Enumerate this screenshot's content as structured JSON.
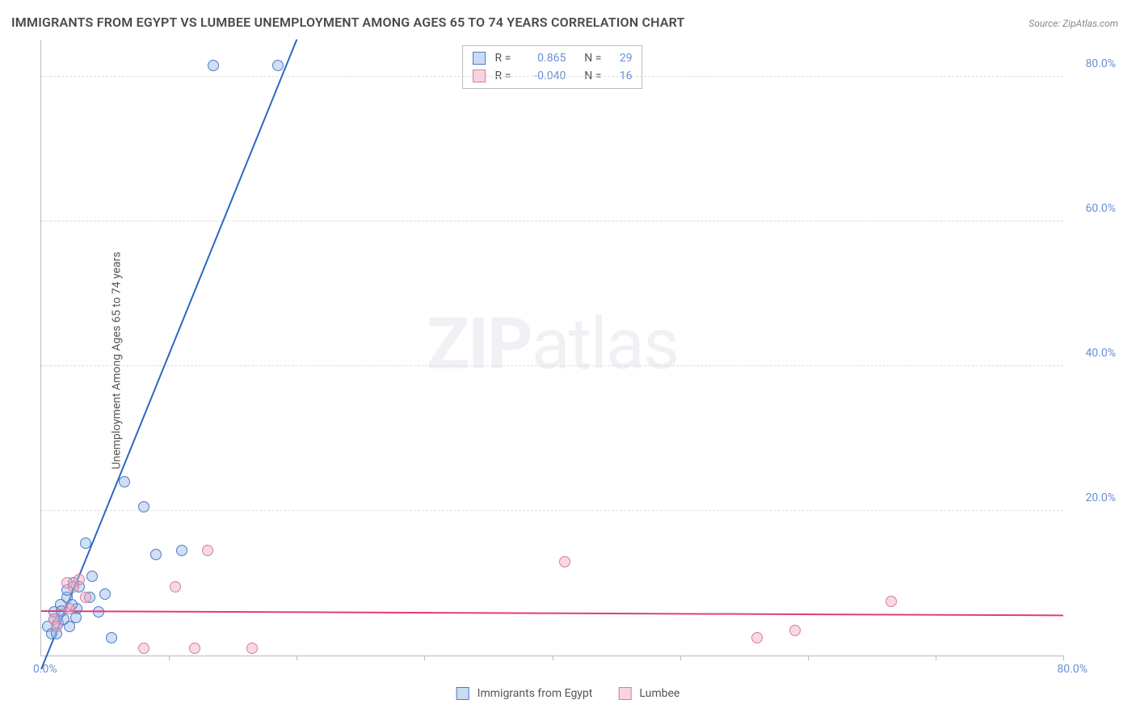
{
  "title": "IMMIGRANTS FROM EGYPT VS LUMBEE UNEMPLOYMENT AMONG AGES 65 TO 74 YEARS CORRELATION CHART",
  "source": "Source: ZipAtlas.com",
  "ylabel": "Unemployment Among Ages 65 to 74 years",
  "watermark_bold": "ZIP",
  "watermark_light": "atlas",
  "chart": {
    "type": "scatter-with-regression",
    "background_color": "#ffffff",
    "grid_color": "#dcdcdc",
    "axis_color": "#bbbbbb",
    "tick_label_color": "#6a8fd8",
    "xlim": [
      0,
      80
    ],
    "ylim": [
      0,
      85
    ],
    "x_origin_label": "0.0%",
    "x_end_label": "80.0%",
    "yticks": [
      {
        "value": 20,
        "label": "20.0%"
      },
      {
        "value": 40,
        "label": "40.0%"
      },
      {
        "value": 60,
        "label": "60.0%"
      },
      {
        "value": 80,
        "label": "80.0%"
      }
    ],
    "xticks_minor": [
      10,
      20,
      30,
      40,
      50,
      60,
      70,
      80
    ],
    "series": [
      {
        "key": "a",
        "name": "Immigrants from Egypt",
        "color_fill": "rgba(150,185,230,0.45)",
        "color_stroke": "#4a7bc8",
        "r_label": "R =",
        "r_value": "0.865",
        "n_label": "N =",
        "n_value": "29",
        "trend": {
          "x1": 0,
          "y1": -2,
          "x2": 20,
          "y2": 85,
          "color": "#2e66c4",
          "width": 2
        },
        "points": [
          {
            "x": 0.5,
            "y": 4
          },
          {
            "x": 0.8,
            "y": 3
          },
          {
            "x": 1,
            "y": 5
          },
          {
            "x": 1,
            "y": 6
          },
          {
            "x": 1.3,
            "y": 4.5
          },
          {
            "x": 1.5,
            "y": 7
          },
          {
            "x": 2,
            "y": 8
          },
          {
            "x": 2,
            "y": 9
          },
          {
            "x": 2.2,
            "y": 4
          },
          {
            "x": 2.5,
            "y": 10
          },
          {
            "x": 2.8,
            "y": 6.5
          },
          {
            "x": 3.5,
            "y": 15.5
          },
          {
            "x": 3.8,
            "y": 8
          },
          {
            "x": 4,
            "y": 11
          },
          {
            "x": 4.5,
            "y": 6
          },
          {
            "x": 5.5,
            "y": 2.5
          },
          {
            "x": 6.5,
            "y": 24
          },
          {
            "x": 8,
            "y": 20.5
          },
          {
            "x": 9,
            "y": 14
          },
          {
            "x": 11,
            "y": 14.5
          },
          {
            "x": 13.5,
            "y": 81.5
          },
          {
            "x": 18.5,
            "y": 81.5
          },
          {
            "x": 1.8,
            "y": 5
          },
          {
            "x": 2.4,
            "y": 7
          },
          {
            "x": 1.2,
            "y": 3
          },
          {
            "x": 3,
            "y": 9.5
          },
          {
            "x": 2.7,
            "y": 5.2
          },
          {
            "x": 1.6,
            "y": 6.2
          },
          {
            "x": 5,
            "y": 8.5
          }
        ]
      },
      {
        "key": "b",
        "name": "Lumbee",
        "color_fill": "rgba(240,170,190,0.45)",
        "color_stroke": "#d97aa0",
        "r_label": "R =",
        "r_value": "-0.040",
        "n_label": "N =",
        "n_value": "16",
        "trend": {
          "x1": 0,
          "y1": 6,
          "x2": 80,
          "y2": 5.4,
          "color": "#e23d7a",
          "width": 2
        },
        "points": [
          {
            "x": 1,
            "y": 5
          },
          {
            "x": 1.2,
            "y": 4
          },
          {
            "x": 2,
            "y": 10
          },
          {
            "x": 2.5,
            "y": 9.5
          },
          {
            "x": 3,
            "y": 10.5
          },
          {
            "x": 3.5,
            "y": 8
          },
          {
            "x": 8,
            "y": 1
          },
          {
            "x": 10.5,
            "y": 9.5
          },
          {
            "x": 12,
            "y": 1
          },
          {
            "x": 13,
            "y": 14.5
          },
          {
            "x": 16.5,
            "y": 1
          },
          {
            "x": 41,
            "y": 13
          },
          {
            "x": 56,
            "y": 2.5
          },
          {
            "x": 59,
            "y": 3.5
          },
          {
            "x": 66.5,
            "y": 7.5
          },
          {
            "x": 2.2,
            "y": 6.5
          }
        ]
      }
    ]
  }
}
